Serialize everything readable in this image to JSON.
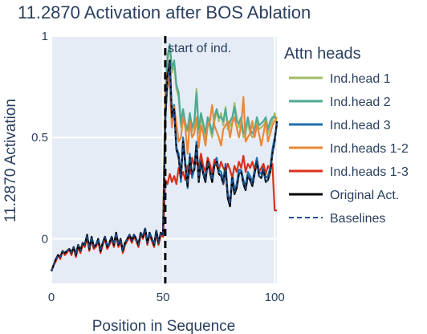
{
  "chart_data": {
    "type": "line",
    "title": "11.2870 Activation after BOS Ablation",
    "xlabel": "Position in Sequence",
    "ylabel": "11.2870 Activation",
    "xlim": [
      0,
      101
    ],
    "ylim": [
      -0.22,
      1.0
    ],
    "xticks": [
      0,
      50,
      100
    ],
    "xtick_labels": [
      "0",
      "50",
      "100"
    ],
    "yticks": [
      0,
      0.5,
      1
    ],
    "ytick_labels": [
      "0",
      "0.5",
      "1"
    ],
    "grid": true,
    "background": "#e5ecf6",
    "legend": {
      "title": "Attn heads",
      "placement": "right"
    },
    "annotation": {
      "text": "start of ind.",
      "x": 51
    },
    "vline": {
      "x": 51,
      "style": "dash",
      "color": "#000000"
    },
    "series": [
      {
        "name": "Ind.head 1",
        "color": "#a3bd6a",
        "dash": "solid",
        "values": [
          -0.16,
          -0.13,
          -0.1,
          -0.08,
          -0.09,
          -0.06,
          -0.07,
          -0.06,
          -0.05,
          -0.07,
          -0.04,
          -0.08,
          -0.03,
          -0.06,
          -0.02,
          -0.03,
          0.02,
          -0.05,
          0.01,
          -0.04,
          -0.03,
          0.0,
          -0.06,
          -0.02,
          0.01,
          -0.04,
          -0.02,
          0.01,
          -0.03,
          0.03,
          -0.03,
          0.0,
          -0.06,
          -0.02,
          0.0,
          0.02,
          -0.01,
          0.02,
          0.0,
          -0.03,
          0.03,
          0.01,
          0.05,
          -0.02,
          0.03,
          0.0,
          -0.03,
          0.04,
          -0.02,
          0.03,
          0.02,
          0.7,
          0.88,
          0.95,
          0.82,
          0.86,
          0.74,
          0.7,
          0.55,
          0.62,
          0.55,
          0.53,
          0.6,
          0.53,
          0.56,
          0.74,
          0.52,
          0.6,
          0.55,
          0.5,
          0.58,
          0.55,
          0.5,
          0.58,
          0.63,
          0.58,
          0.62,
          0.56,
          0.65,
          0.54,
          0.56,
          0.58,
          0.67,
          0.6,
          0.55,
          0.58,
          0.5,
          0.52,
          0.58,
          0.52,
          0.5,
          0.52,
          0.58,
          0.54,
          0.55,
          0.56,
          0.58,
          0.52,
          0.56,
          0.58,
          0.62,
          0.57
        ]
      },
      {
        "name": "Ind.head 2",
        "color": "#4fa893",
        "dash": "solid",
        "values": [
          -0.16,
          -0.13,
          -0.1,
          -0.08,
          -0.09,
          -0.06,
          -0.07,
          -0.06,
          -0.05,
          -0.07,
          -0.04,
          -0.08,
          -0.03,
          -0.06,
          -0.02,
          -0.03,
          0.02,
          -0.05,
          0.01,
          -0.04,
          -0.03,
          0.0,
          -0.06,
          -0.02,
          0.01,
          -0.04,
          -0.02,
          0.01,
          -0.03,
          0.03,
          -0.03,
          0.0,
          -0.06,
          -0.02,
          0.0,
          0.02,
          -0.01,
          0.02,
          0.0,
          -0.03,
          0.03,
          0.01,
          0.05,
          -0.02,
          0.03,
          0.0,
          -0.03,
          0.04,
          -0.02,
          0.03,
          0.02,
          0.72,
          0.9,
          0.96,
          0.84,
          0.88,
          0.76,
          0.72,
          0.57,
          0.64,
          0.57,
          0.54,
          0.62,
          0.55,
          0.58,
          0.72,
          0.54,
          0.62,
          0.57,
          0.52,
          0.6,
          0.57,
          0.52,
          0.6,
          0.64,
          0.6,
          0.6,
          0.58,
          0.64,
          0.56,
          0.58,
          0.6,
          0.65,
          0.58,
          0.57,
          0.6,
          0.52,
          0.54,
          0.6,
          0.54,
          0.52,
          0.54,
          0.6,
          0.56,
          0.57,
          0.58,
          0.6,
          0.54,
          0.58,
          0.6,
          0.6,
          0.59
        ]
      },
      {
        "name": "Ind.head 3",
        "color": "#1f6fad",
        "dash": "solid",
        "values": [
          -0.16,
          -0.13,
          -0.1,
          -0.08,
          -0.09,
          -0.06,
          -0.07,
          -0.06,
          -0.05,
          -0.07,
          -0.04,
          -0.08,
          -0.03,
          -0.06,
          -0.02,
          -0.03,
          0.02,
          -0.05,
          0.01,
          -0.04,
          -0.03,
          0.0,
          -0.06,
          -0.02,
          0.01,
          -0.04,
          -0.02,
          0.01,
          -0.03,
          0.03,
          -0.03,
          0.0,
          -0.06,
          -0.02,
          0.0,
          0.02,
          -0.01,
          0.02,
          0.0,
          -0.03,
          0.03,
          0.01,
          0.05,
          -0.02,
          0.03,
          0.0,
          -0.03,
          0.04,
          -0.02,
          0.03,
          0.02,
          0.6,
          0.78,
          0.86,
          0.62,
          0.66,
          0.45,
          0.42,
          0.28,
          0.5,
          0.38,
          0.25,
          0.42,
          0.3,
          0.35,
          0.48,
          0.3,
          0.4,
          0.33,
          0.3,
          0.4,
          0.34,
          0.3,
          0.38,
          0.4,
          0.34,
          0.33,
          0.29,
          0.37,
          0.22,
          0.18,
          0.32,
          0.24,
          0.27,
          0.34,
          0.34,
          0.29,
          0.26,
          0.33,
          0.31,
          0.28,
          0.34,
          0.4,
          0.33,
          0.32,
          0.36,
          0.3,
          0.31,
          0.35,
          0.44,
          0.5,
          0.56
        ]
      },
      {
        "name": "Ind.heads 1-2",
        "color": "#e8883a",
        "dash": "solid",
        "values": [
          -0.16,
          -0.13,
          -0.11,
          -0.08,
          -0.09,
          -0.06,
          -0.08,
          -0.06,
          -0.05,
          -0.08,
          -0.04,
          -0.09,
          -0.03,
          -0.07,
          -0.02,
          -0.04,
          0.01,
          -0.05,
          0.0,
          -0.05,
          -0.03,
          -0.01,
          -0.07,
          -0.03,
          0.0,
          -0.05,
          -0.03,
          0.0,
          -0.04,
          0.02,
          -0.04,
          -0.01,
          -0.07,
          -0.03,
          -0.01,
          0.01,
          -0.02,
          0.01,
          -0.01,
          -0.04,
          0.02,
          0.0,
          0.04,
          -0.03,
          0.02,
          -0.01,
          -0.04,
          0.03,
          -0.03,
          0.02,
          0.01,
          0.7,
          0.82,
          0.74,
          0.55,
          0.65,
          0.57,
          0.48,
          0.5,
          0.6,
          0.55,
          0.42,
          0.58,
          0.5,
          0.52,
          0.6,
          0.45,
          0.56,
          0.52,
          0.46,
          0.56,
          0.58,
          0.66,
          0.56,
          0.53,
          0.5,
          0.46,
          0.54,
          0.56,
          0.58,
          0.5,
          0.57,
          0.6,
          0.55,
          0.5,
          0.56,
          0.7,
          0.48,
          0.5,
          0.52,
          0.58,
          0.5,
          0.56,
          0.52,
          0.46,
          0.52,
          0.58,
          0.48,
          0.52,
          0.56,
          0.58,
          0.6
        ]
      },
      {
        "name": "Ind.heads 1-3",
        "color": "#d9301e",
        "dash": "solid",
        "values": [
          -0.16,
          -0.13,
          -0.11,
          -0.08,
          -0.1,
          -0.06,
          -0.08,
          -0.07,
          -0.05,
          -0.08,
          -0.04,
          -0.09,
          -0.04,
          -0.07,
          -0.03,
          -0.04,
          0.01,
          -0.06,
          0.0,
          -0.05,
          -0.04,
          -0.01,
          -0.07,
          -0.03,
          0.0,
          -0.05,
          -0.03,
          0.0,
          -0.04,
          0.02,
          -0.04,
          -0.01,
          -0.07,
          -0.03,
          -0.01,
          0.01,
          -0.02,
          0.01,
          -0.01,
          -0.04,
          0.02,
          0.0,
          0.04,
          -0.03,
          0.02,
          -0.01,
          -0.04,
          0.03,
          -0.03,
          0.02,
          0.01,
          0.29,
          0.27,
          0.32,
          0.28,
          0.31,
          0.27,
          0.35,
          0.3,
          0.33,
          0.29,
          0.36,
          0.32,
          0.4,
          0.36,
          0.38,
          0.35,
          0.42,
          0.36,
          0.33,
          0.4,
          0.37,
          0.32,
          0.39,
          0.36,
          0.34,
          0.38,
          0.35,
          0.33,
          0.37,
          0.34,
          0.3,
          0.36,
          0.33,
          0.38,
          0.35,
          0.41,
          0.33,
          0.37,
          0.35,
          0.38,
          0.34,
          0.36,
          0.33,
          0.35,
          0.37,
          0.32,
          0.36,
          0.34,
          0.37,
          0.14,
          0.14
        ]
      },
      {
        "name": "Original Act.",
        "color": "#000000",
        "dash": "solid",
        "values": [
          -0.16,
          -0.13,
          -0.1,
          -0.08,
          -0.09,
          -0.06,
          -0.07,
          -0.06,
          -0.05,
          -0.07,
          -0.04,
          -0.08,
          -0.03,
          -0.06,
          -0.02,
          -0.03,
          0.02,
          -0.05,
          0.01,
          -0.04,
          -0.03,
          0.0,
          -0.06,
          -0.02,
          0.01,
          -0.04,
          -0.02,
          0.01,
          -0.03,
          0.03,
          -0.03,
          0.0,
          -0.06,
          -0.02,
          0.0,
          0.02,
          -0.01,
          0.02,
          0.0,
          -0.03,
          0.03,
          0.01,
          0.05,
          -0.02,
          0.03,
          0.0,
          -0.03,
          0.04,
          -0.02,
          0.03,
          0.02,
          0.58,
          0.8,
          0.88,
          0.6,
          0.64,
          0.44,
          0.4,
          0.3,
          0.48,
          0.36,
          0.26,
          0.4,
          0.32,
          0.34,
          0.46,
          0.28,
          0.38,
          0.32,
          0.28,
          0.38,
          0.33,
          0.28,
          0.36,
          0.38,
          0.32,
          0.31,
          0.27,
          0.35,
          0.2,
          0.16,
          0.3,
          0.22,
          0.25,
          0.32,
          0.33,
          0.27,
          0.24,
          0.31,
          0.29,
          0.26,
          0.32,
          0.38,
          0.31,
          0.3,
          0.34,
          0.28,
          0.29,
          0.33,
          0.42,
          0.48,
          0.58
        ]
      },
      {
        "name": "Baselines",
        "color": "#1f4e8f",
        "dash": "dash",
        "values": [
          -0.16,
          -0.13,
          -0.1,
          -0.08,
          -0.09,
          -0.06,
          -0.07,
          -0.06,
          -0.05,
          -0.07,
          -0.04,
          -0.08,
          -0.03,
          -0.06,
          -0.02,
          -0.03,
          0.02,
          -0.05,
          0.01,
          -0.04,
          -0.03,
          0.0,
          -0.06,
          -0.02,
          0.01,
          -0.04,
          -0.02,
          0.01,
          -0.03,
          0.03,
          -0.03,
          0.0,
          -0.06,
          -0.02,
          0.0,
          0.02,
          -0.01,
          0.02,
          0.0,
          -0.03,
          0.03,
          0.01,
          0.05,
          -0.02,
          0.03,
          0.0,
          -0.03,
          0.04,
          -0.02,
          0.03,
          0.02,
          0.58,
          0.79,
          0.87,
          0.6,
          0.63,
          0.44,
          0.4,
          0.3,
          0.47,
          0.36,
          0.27,
          0.4,
          0.31,
          0.34,
          0.45,
          0.29,
          0.38,
          0.32,
          0.29,
          0.38,
          0.33,
          0.29,
          0.36,
          0.38,
          0.32,
          0.31,
          0.27,
          0.35,
          0.21,
          0.17,
          0.3,
          0.23,
          0.26,
          0.32,
          0.33,
          0.27,
          0.25,
          0.31,
          0.29,
          0.27,
          0.32,
          0.38,
          0.31,
          0.3,
          0.34,
          0.28,
          0.29,
          0.33,
          0.42,
          0.48,
          0.57
        ]
      }
    ]
  }
}
